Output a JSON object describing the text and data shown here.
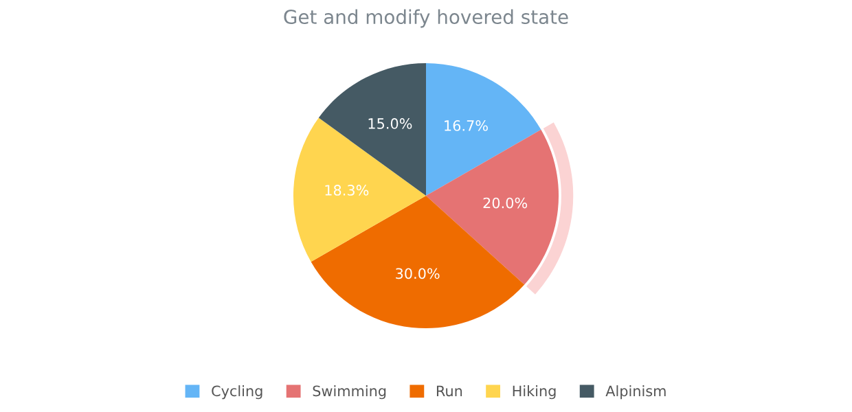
{
  "chart_data": {
    "type": "pie",
    "title": "Get and modify hovered state",
    "categories": [
      "Cycling",
      "Swimming",
      "Run",
      "Hiking",
      "Alpinism"
    ],
    "values": [
      16.7,
      20.0,
      30.0,
      18.3,
      15.0
    ],
    "colors": [
      "#64b5f6",
      "#e57373",
      "#ef6c00",
      "#ffd54f",
      "#455a64"
    ],
    "value_labels": [
      "16.7%",
      "20.0%",
      "30.0%",
      "18.3%",
      "15.0%"
    ],
    "legend": "bottom"
  }
}
